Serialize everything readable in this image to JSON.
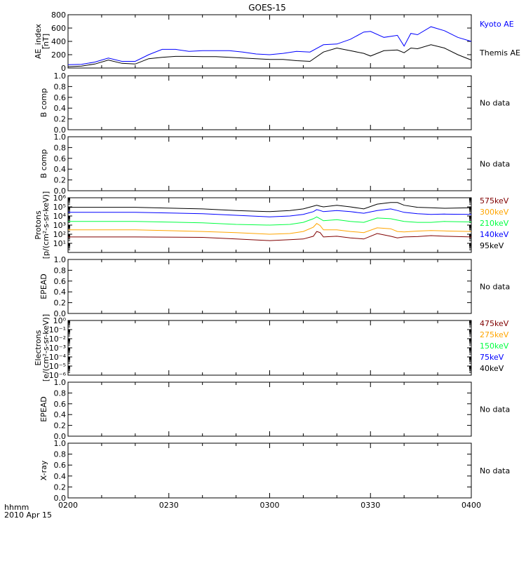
{
  "page": {
    "title": "GOES-15",
    "time_label": "hhmm",
    "date_label": "2010 Apr 15",
    "x_ticks": [
      "0200",
      "0230",
      "0300",
      "0330",
      "0400"
    ]
  },
  "chart_data": [
    {
      "type": "line",
      "ylabel": [
        "AE_index",
        "[nT]"
      ],
      "yscale": "linear",
      "ylim": [
        0,
        800
      ],
      "yticks": [
        0,
        200,
        400,
        600,
        800
      ],
      "ytick_labels": [
        "0",
        "200",
        "400",
        "600",
        "800"
      ],
      "xlim": [
        0,
        120
      ],
      "no_data": false,
      "no_data_text": "",
      "series": [
        {
          "name": "Kyoto AE",
          "color": "#0000ff",
          "x": [
            0,
            4,
            8,
            12,
            16,
            20,
            24,
            28,
            32,
            36,
            40,
            44,
            48,
            52,
            56,
            60,
            64,
            68,
            72,
            76,
            80,
            84,
            88,
            90,
            94,
            98,
            100,
            102,
            104,
            108,
            112,
            116,
            120
          ],
          "values": [
            50,
            55,
            90,
            150,
            100,
            100,
            200,
            280,
            280,
            250,
            260,
            260,
            260,
            240,
            210,
            200,
            220,
            250,
            240,
            350,
            360,
            430,
            540,
            550,
            460,
            490,
            330,
            520,
            500,
            620,
            560,
            460,
            400
          ]
        },
        {
          "name": "Themis AE",
          "color": "#000000",
          "x": [
            0,
            4,
            8,
            12,
            16,
            20,
            24,
            28,
            32,
            36,
            40,
            44,
            48,
            52,
            56,
            60,
            64,
            68,
            72,
            76,
            80,
            84,
            88,
            90,
            94,
            98,
            100,
            102,
            104,
            108,
            112,
            116,
            120
          ],
          "values": [
            20,
            30,
            60,
            120,
            70,
            60,
            140,
            160,
            175,
            175,
            170,
            170,
            160,
            150,
            140,
            130,
            130,
            110,
            100,
            240,
            300,
            260,
            220,
            180,
            260,
            270,
            230,
            300,
            290,
            350,
            300,
            200,
            120
          ]
        }
      ]
    },
    {
      "type": "line",
      "ylabel": [
        "B comp"
      ],
      "yscale": "linear",
      "ylim": [
        0,
        1
      ],
      "yticks": [
        0,
        0.2,
        0.4,
        0.6,
        0.8,
        1
      ],
      "ytick_labels": [
        "0.0",
        "0.2",
        "0.4",
        "0.6",
        "0.8",
        "1.0"
      ],
      "xlim": [
        0,
        120
      ],
      "no_data": true,
      "no_data_text": "No data",
      "series": []
    },
    {
      "type": "line",
      "ylabel": [
        "B comp"
      ],
      "yscale": "linear",
      "ylim": [
        0,
        1
      ],
      "yticks": [
        0,
        0.2,
        0.4,
        0.6,
        0.8,
        1
      ],
      "ytick_labels": [
        "0.0",
        "0.2",
        "0.4",
        "0.6",
        "0.8",
        "1.0"
      ],
      "xlim": [
        0,
        120
      ],
      "no_data": true,
      "no_data_text": "No data",
      "series": []
    },
    {
      "type": "line",
      "ylabel": [
        "Protons",
        "[p/(cm²-s-sr-keV)]"
      ],
      "yscale": "log",
      "ylim": [
        1,
        1000000
      ],
      "yticks": [
        10,
        100,
        1000,
        10000,
        100000,
        1000000
      ],
      "ytick_labels": [
        "10¹",
        "10²",
        "10³",
        "10⁴",
        "10⁵",
        "10⁶"
      ],
      "xlim": [
        0,
        120
      ],
      "no_data": false,
      "no_data_text": "",
      "series": [
        {
          "name": "575keV",
          "color": "#800000",
          "x": [
            0,
            20,
            40,
            50,
            60,
            66,
            70,
            73,
            74,
            75,
            76,
            80,
            84,
            88,
            92,
            96,
            98,
            100,
            104,
            108,
            112,
            120
          ],
          "values": [
            50,
            50,
            45,
            30,
            20,
            25,
            30,
            60,
            200,
            150,
            50,
            60,
            40,
            30,
            120,
            60,
            40,
            50,
            55,
            70,
            60,
            50
          ]
        },
        {
          "name": "300keV",
          "color": "#ffa500",
          "x": [
            0,
            20,
            40,
            50,
            60,
            66,
            70,
            73,
            74,
            75,
            76,
            80,
            84,
            88,
            92,
            96,
            98,
            100,
            104,
            108,
            112,
            120
          ],
          "values": [
            300,
            300,
            200,
            150,
            100,
            120,
            200,
            600,
            1500,
            900,
            300,
            300,
            200,
            150,
            500,
            400,
            200,
            180,
            220,
            250,
            230,
            200
          ]
        },
        {
          "name": "210keV",
          "color": "#00ff40",
          "x": [
            0,
            20,
            40,
            50,
            60,
            66,
            70,
            73,
            74,
            75,
            76,
            80,
            84,
            88,
            92,
            96,
            98,
            100,
            104,
            108,
            112,
            120
          ],
          "values": [
            2500,
            2500,
            1800,
            1200,
            1000,
            1200,
            2000,
            5000,
            8000,
            5000,
            3000,
            4000,
            2500,
            2000,
            6000,
            5000,
            3500,
            2500,
            2000,
            2000,
            2500,
            2200
          ]
        },
        {
          "name": "140keV",
          "color": "#0000ff",
          "x": [
            0,
            20,
            40,
            50,
            60,
            66,
            70,
            73,
            74,
            75,
            76,
            80,
            84,
            88,
            92,
            96,
            98,
            100,
            104,
            108,
            112,
            120
          ],
          "values": [
            25000,
            25000,
            18000,
            12000,
            8000,
            10000,
            15000,
            30000,
            50000,
            40000,
            30000,
            40000,
            30000,
            20000,
            40000,
            60000,
            40000,
            25000,
            18000,
            15000,
            16000,
            15000
          ]
        },
        {
          "name": "95keV",
          "color": "#000000",
          "x": [
            0,
            20,
            40,
            50,
            60,
            66,
            70,
            73,
            74,
            75,
            76,
            80,
            84,
            88,
            92,
            96,
            98,
            100,
            104,
            108,
            112,
            120
          ],
          "values": [
            90000,
            90000,
            60000,
            40000,
            30000,
            40000,
            60000,
            120000,
            150000,
            120000,
            100000,
            150000,
            100000,
            60000,
            200000,
            300000,
            300000,
            150000,
            90000,
            80000,
            70000,
            80000
          ]
        }
      ]
    },
    {
      "type": "line",
      "ylabel": [
        "EPEAD"
      ],
      "yscale": "linear",
      "ylim": [
        0,
        1
      ],
      "yticks": [
        0,
        0.2,
        0.4,
        0.6,
        0.8,
        1
      ],
      "ytick_labels": [
        "0.0",
        "0.2",
        "0.4",
        "0.6",
        "0.8",
        "1.0"
      ],
      "xlim": [
        0,
        120
      ],
      "no_data": true,
      "no_data_text": "No data",
      "series": []
    },
    {
      "type": "line",
      "ylabel": [
        "Electrons",
        "[e/(cm²-s-sr-keV)]"
      ],
      "yscale": "log",
      "ylim": [
        1e-06,
        1
      ],
      "yticks": [
        1e-06,
        1e-05,
        0.0001,
        0.001,
        0.01,
        0.1,
        1
      ],
      "ytick_labels": [
        "10⁻⁶",
        "10⁻⁵",
        "10⁻⁴",
        "10⁻³",
        "10⁻²",
        "10⁻¹",
        "10⁰"
      ],
      "xlim": [
        0,
        120
      ],
      "no_data": false,
      "no_data_text": "",
      "series": [
        {
          "name": "475keV",
          "color": "#800000",
          "x": [],
          "values": []
        },
        {
          "name": "275keV",
          "color": "#ffa500",
          "x": [],
          "values": []
        },
        {
          "name": "150keV",
          "color": "#00ff40",
          "x": [],
          "values": []
        },
        {
          "name": "75keV",
          "color": "#0000ff",
          "x": [],
          "values": []
        },
        {
          "name": "40keV",
          "color": "#000000",
          "x": [],
          "values": []
        }
      ]
    },
    {
      "type": "line",
      "ylabel": [
        "EPEAD"
      ],
      "yscale": "linear",
      "ylim": [
        0,
        1
      ],
      "yticks": [
        0,
        0.2,
        0.4,
        0.6,
        0.8,
        1
      ],
      "ytick_labels": [
        "0.0",
        "0.2",
        "0.4",
        "0.6",
        "0.8",
        "1.0"
      ],
      "xlim": [
        0,
        120
      ],
      "no_data": true,
      "no_data_text": "No data",
      "series": []
    },
    {
      "type": "line",
      "ylabel": [
        "X-ray"
      ],
      "yscale": "linear",
      "ylim": [
        0,
        1
      ],
      "yticks": [
        0,
        0.2,
        0.4,
        0.6,
        0.8,
        1
      ],
      "ytick_labels": [
        "0.0",
        "0.2",
        "0.4",
        "0.6",
        "0.8",
        "1.0"
      ],
      "xlim": [
        0,
        120
      ],
      "no_data": true,
      "no_data_text": "No data",
      "series": []
    }
  ]
}
